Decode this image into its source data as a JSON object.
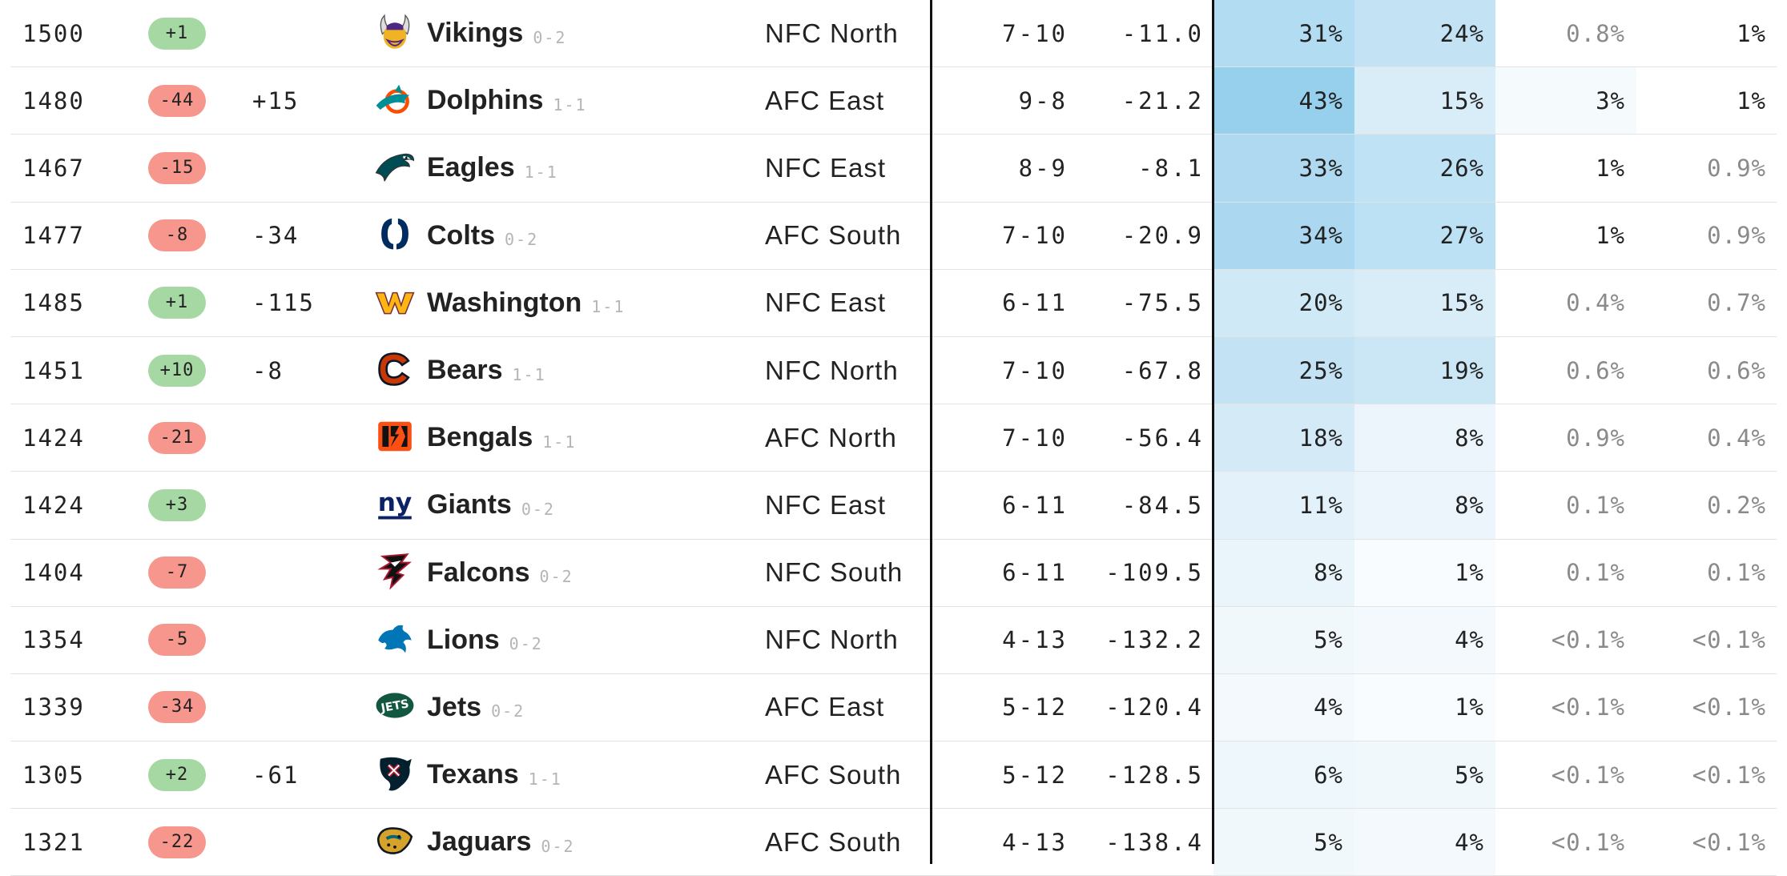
{
  "rows": [
    {
      "elo": "1500",
      "change": "+1",
      "dir": "up",
      "qb": "",
      "team": "Vikings",
      "record": "0-2",
      "division": "NFC North",
      "proj_record": "7-10",
      "point_diff": "-11.0",
      "playoffs": "31%",
      "division_win": "24%",
      "make_sb": "0.8%",
      "win_sb": "1%",
      "c1": "#b2dcf2",
      "c2": "#c3e3f4",
      "c3": "#ffffff",
      "c4": "#ffffff",
      "logo": "vikings-logo",
      "m3": true,
      "m4": false
    },
    {
      "elo": "1480",
      "change": "-44",
      "dir": "down",
      "qb": "+15",
      "team": "Dolphins",
      "record": "1-1",
      "division": "AFC East",
      "proj_record": "9-8",
      "point_diff": "-21.2",
      "playoffs": "43%",
      "division_win": "15%",
      "make_sb": "3%",
      "win_sb": "1%",
      "c1": "#97d0ec",
      "c2": "#d8edf8",
      "c3": "#f5fafd",
      "c4": "#ffffff",
      "logo": "dolphins-logo",
      "m3": false,
      "m4": false
    },
    {
      "elo": "1467",
      "change": "-15",
      "dir": "down",
      "qb": "",
      "team": "Eagles",
      "record": "1-1",
      "division": "NFC East",
      "proj_record": "8-9",
      "point_diff": "-8.1",
      "playoffs": "33%",
      "division_win": "26%",
      "make_sb": "1%",
      "win_sb": "0.9%",
      "c1": "#aed9f1",
      "c2": "#bfe2f4",
      "c3": "#ffffff",
      "c4": "#ffffff",
      "logo": "eagles-logo",
      "m3": false,
      "m4": true
    },
    {
      "elo": "1477",
      "change": "-8",
      "dir": "down",
      "qb": "-34",
      "team": "Colts",
      "record": "0-2",
      "division": "AFC South",
      "proj_record": "7-10",
      "point_diff": "-20.9",
      "playoffs": "34%",
      "division_win": "27%",
      "make_sb": "1%",
      "win_sb": "0.9%",
      "c1": "#abd8f0",
      "c2": "#bde1f4",
      "c3": "#ffffff",
      "c4": "#ffffff",
      "logo": "colts-logo",
      "m3": false,
      "m4": true
    },
    {
      "elo": "1485",
      "change": "+1",
      "dir": "up",
      "qb": "-115",
      "team": "Washington",
      "record": "1-1",
      "division": "NFC East",
      "proj_record": "6-11",
      "point_diff": "-75.5",
      "playoffs": "20%",
      "division_win": "15%",
      "make_sb": "0.4%",
      "win_sb": "0.7%",
      "c1": "#cfe9f6",
      "c2": "#d8edf8",
      "c3": "#ffffff",
      "c4": "#ffffff",
      "logo": "washington-logo",
      "m3": true,
      "m4": true
    },
    {
      "elo": "1451",
      "change": "+10",
      "dir": "up",
      "qb": "-8",
      "team": "Bears",
      "record": "1-1",
      "division": "NFC North",
      "proj_record": "7-10",
      "point_diff": "-67.8",
      "playoffs": "25%",
      "division_win": "19%",
      "make_sb": "0.6%",
      "win_sb": "0.6%",
      "c1": "#c3e3f4",
      "c2": "#cbe7f6",
      "c3": "#ffffff",
      "c4": "#ffffff",
      "logo": "bears-logo",
      "m3": true,
      "m4": true
    },
    {
      "elo": "1424",
      "change": "-21",
      "dir": "down",
      "qb": "",
      "team": "Bengals",
      "record": "1-1",
      "division": "AFC North",
      "proj_record": "7-10",
      "point_diff": "-56.4",
      "playoffs": "18%",
      "division_win": "8%",
      "make_sb": "0.9%",
      "win_sb": "0.4%",
      "c1": "#d4ebf7",
      "c2": "#ebf5fb",
      "c3": "#ffffff",
      "c4": "#ffffff",
      "logo": "bengals-logo",
      "m3": true,
      "m4": true
    },
    {
      "elo": "1424",
      "change": "+3",
      "dir": "up",
      "qb": "",
      "team": "Giants",
      "record": "0-2",
      "division": "NFC East",
      "proj_record": "6-11",
      "point_diff": "-84.5",
      "playoffs": "11%",
      "division_win": "8%",
      "make_sb": "0.1%",
      "win_sb": "0.2%",
      "c1": "#e2f1fa",
      "c2": "#ebf5fb",
      "c3": "#ffffff",
      "c4": "#ffffff",
      "logo": "giants-logo",
      "m3": true,
      "m4": true
    },
    {
      "elo": "1404",
      "change": "-7",
      "dir": "down",
      "qb": "",
      "team": "Falcons",
      "record": "0-2",
      "division": "NFC South",
      "proj_record": "6-11",
      "point_diff": "-109.5",
      "playoffs": "8%",
      "division_win": "1%",
      "make_sb": "0.1%",
      "win_sb": "0.1%",
      "c1": "#eaf5fb",
      "c2": "#f9fcfe",
      "c3": "#ffffff",
      "c4": "#ffffff",
      "logo": "falcons-logo",
      "m3": true,
      "m4": true
    },
    {
      "elo": "1354",
      "change": "-5",
      "dir": "down",
      "qb": "",
      "team": "Lions",
      "record": "0-2",
      "division": "NFC North",
      "proj_record": "4-13",
      "point_diff": "-132.2",
      "playoffs": "5%",
      "division_win": "4%",
      "make_sb": "<0.1%",
      "win_sb": "<0.1%",
      "c1": "#f1f8fc",
      "c2": "#f3f9fd",
      "c3": "#ffffff",
      "c4": "#ffffff",
      "logo": "lions-logo",
      "m3": true,
      "m4": true
    },
    {
      "elo": "1339",
      "change": "-34",
      "dir": "down",
      "qb": "",
      "team": "Jets",
      "record": "0-2",
      "division": "AFC East",
      "proj_record": "5-12",
      "point_diff": "-120.4",
      "playoffs": "4%",
      "division_win": "1%",
      "make_sb": "<0.1%",
      "win_sb": "<0.1%",
      "c1": "#f3f9fd",
      "c2": "#f9fcfe",
      "c3": "#ffffff",
      "c4": "#ffffff",
      "logo": "jets-logo",
      "m3": true,
      "m4": true
    },
    {
      "elo": "1305",
      "change": "+2",
      "dir": "up",
      "qb": "-61",
      "team": "Texans",
      "record": "1-1",
      "division": "AFC South",
      "proj_record": "5-12",
      "point_diff": "-128.5",
      "playoffs": "6%",
      "division_win": "5%",
      "make_sb": "<0.1%",
      "win_sb": "<0.1%",
      "c1": "#eef7fc",
      "c2": "#f1f8fc",
      "c3": "#ffffff",
      "c4": "#ffffff",
      "logo": "texans-logo",
      "m3": true,
      "m4": true
    },
    {
      "elo": "1321",
      "change": "-22",
      "dir": "down",
      "qb": "",
      "team": "Jaguars",
      "record": "0-2",
      "division": "AFC South",
      "proj_record": "4-13",
      "point_diff": "-138.4",
      "playoffs": "5%",
      "division_win": "4%",
      "make_sb": "<0.1%",
      "win_sb": "<0.1%",
      "c1": "#f1f8fc",
      "c2": "#f3f9fd",
      "c3": "#ffffff",
      "c4": "#ffffff",
      "logo": "jaguars-logo",
      "m3": true,
      "m4": true
    }
  ]
}
